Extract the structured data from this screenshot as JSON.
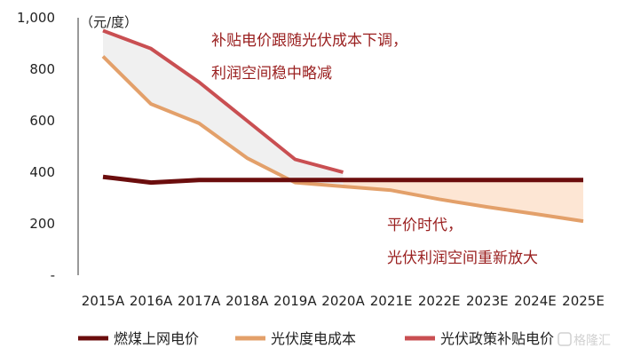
{
  "chart_data": {
    "type": "line",
    "unit_label": "（元/度）",
    "categories": [
      "2015A",
      "2016A",
      "2017A",
      "2018A",
      "2019A",
      "2020A",
      "2021E",
      "2022E",
      "2023E",
      "2024E",
      "2025E"
    ],
    "ylim": [
      0,
      1000
    ],
    "yticks": [
      {
        "value": 1000,
        "label": "1,000"
      },
      {
        "value": 800,
        "label": "800"
      },
      {
        "value": 600,
        "label": "600"
      },
      {
        "value": 400,
        "label": "400"
      },
      {
        "value": 200,
        "label": "200"
      },
      {
        "value": 0,
        "label": "-"
      }
    ],
    "series": [
      {
        "name": "燃煤上网电价",
        "color": "#6b0d0d",
        "values": [
          382,
          360,
          370,
          370,
          370,
          370,
          370,
          370,
          370,
          370,
          370
        ]
      },
      {
        "name": "光伏度电成本",
        "color": "#e3a06a",
        "values": [
          850,
          665,
          590,
          455,
          360,
          345,
          330,
          295,
          265,
          238,
          210
        ]
      },
      {
        "name": "光伏政策补贴电价",
        "color": "#c94f52",
        "values": [
          950,
          880,
          750,
          600,
          450,
          400,
          null,
          null,
          null,
          null,
          null
        ]
      }
    ],
    "band_colors": {
      "subsidy_band": "#f0f0f0",
      "profit_band": "#fde6d4"
    },
    "annotations": [
      {
        "lines": [
          "补贴电价跟随光伏成本下调，",
          "利润空间稳中略减"
        ],
        "color": "#9a2020"
      },
      {
        "lines": [
          "平价时代，",
          "光伏利润空间重新放大"
        ],
        "color": "#9a2020"
      }
    ],
    "watermark": "格隆汇"
  }
}
